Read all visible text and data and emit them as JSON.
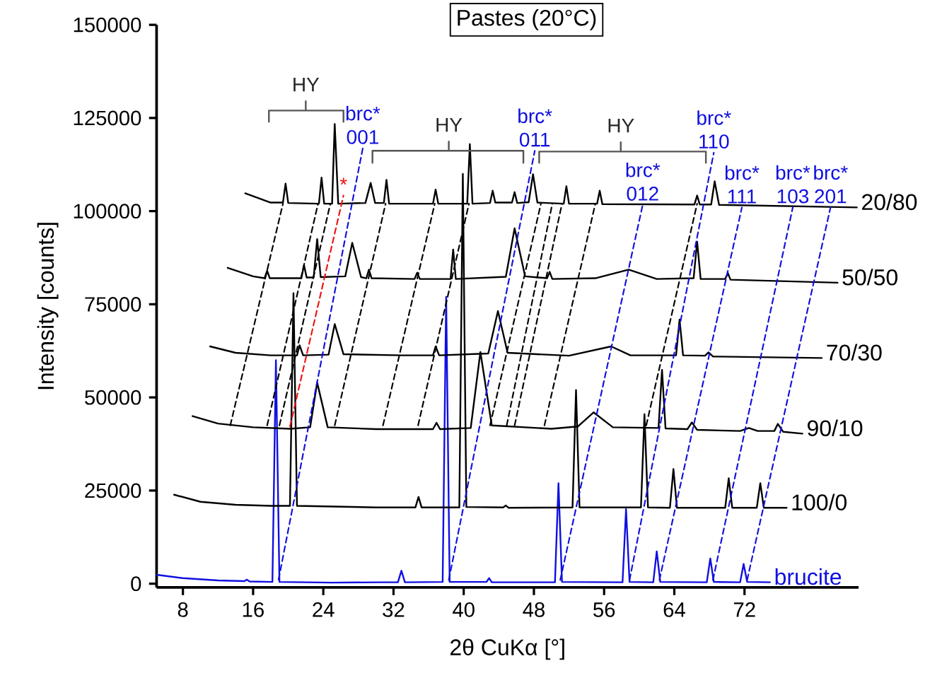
{
  "chart_data": {
    "type": "line",
    "title": "Pastes (20°C)",
    "xlabel": "2θ CuKα [°]",
    "ylabel": "Intensity [counts]",
    "xlim": [
      5,
      85
    ],
    "ylim": [
      -1000,
      150000
    ],
    "xticks": [
      8,
      16,
      24,
      32,
      40,
      48,
      56,
      64,
      72
    ],
    "yticks": [
      0,
      25000,
      50000,
      75000,
      100000,
      125000,
      150000
    ],
    "series": [
      {
        "name": "brucite",
        "color": "#1010e0",
        "x": [
          5,
          8,
          12,
          15,
          15.3,
          15.6,
          18.2,
          18.6,
          19.0,
          25,
          30.5,
          32.5,
          32.9,
          33.3,
          37.6,
          38.0,
          38.4,
          42.6,
          42.9,
          43.2,
          50.4,
          50.8,
          51.2,
          58.1,
          58.5,
          58.9,
          61.6,
          62.0,
          62.4,
          67.7,
          68.1,
          68.5,
          71.5,
          71.9,
          72.3,
          74.9
        ],
        "values": [
          2400,
          1500,
          900,
          700,
          1100,
          600,
          500,
          60000,
          500,
          300,
          400,
          400,
          3500,
          400,
          500,
          77000,
          500,
          500,
          1500,
          400,
          400,
          27000,
          500,
          400,
          20000,
          500,
          400,
          8700,
          500,
          400,
          6800,
          500,
          400,
          5300,
          500,
          400
        ]
      },
      {
        "name": "100/0",
        "color": "#000000",
        "x": [
          7.0,
          10,
          14,
          18,
          20.2,
          20.6,
          21.0,
          30,
          34.5,
          34.85,
          35.2,
          39.5,
          39.9,
          40.3,
          44.5,
          44.8,
          45.1,
          52.4,
          52.8,
          53.2,
          60.2,
          60.6,
          61.0,
          63.5,
          63.9,
          64.3,
          69.8,
          70.2,
          70.6,
          73.4,
          73.8,
          74.2,
          76.8
        ],
        "values": [
          23900,
          22000,
          21200,
          20900,
          20900,
          78000,
          20900,
          20500,
          20500,
          23300,
          20500,
          20500,
          110000,
          20600,
          20500,
          21000,
          20400,
          20500,
          52000,
          20500,
          20500,
          45500,
          20500,
          20400,
          30800,
          20400,
          20400,
          28300,
          20400,
          20400,
          27000,
          20400,
          20400
        ]
      },
      {
        "name": "90/10",
        "color": "#000000",
        "x": [
          9.1,
          12,
          16,
          20.2,
          22.5,
          23.3,
          24.5,
          30,
          36.5,
          36.9,
          37.3,
          40.8,
          41.9,
          43.2,
          50,
          53,
          54.8,
          57,
          62.2,
          62.6,
          63.0,
          65.5,
          66.0,
          66.6,
          71.5,
          72.5,
          73.5,
          75.4,
          75.8,
          76.4,
          78.6
        ],
        "values": [
          45000,
          43000,
          42000,
          41600,
          42000,
          54000,
          42000,
          41500,
          41500,
          43200,
          41500,
          41800,
          62200,
          42500,
          41600,
          42200,
          46000,
          42000,
          41800,
          57400,
          41700,
          41500,
          43300,
          41300,
          41000,
          41800,
          41000,
          41000,
          42900,
          40800,
          40300
        ]
      },
      {
        "name": "70/30",
        "color": "#000000",
        "x": [
          11.1,
          14,
          18,
          21.0,
          21.3,
          21.7,
          24.6,
          25.3,
          26.3,
          33,
          36.5,
          36.8,
          37.2,
          42.8,
          43.9,
          45.0,
          52,
          56.8,
          59,
          64.2,
          64.6,
          65.0,
          67.5,
          67.9,
          68.4,
          80.8
        ],
        "values": [
          63700,
          62000,
          61300,
          61300,
          64000,
          61300,
          61500,
          69700,
          61600,
          61300,
          61300,
          63700,
          61300,
          61800,
          73200,
          62000,
          61200,
          63700,
          61300,
          61300,
          70900,
          61300,
          61200,
          62100,
          61000,
          60600
        ]
      },
      {
        "name": "50/50",
        "color": "#000000",
        "x": [
          13.1,
          16,
          17.3,
          17.6,
          17.9,
          21.5,
          21.8,
          22.1,
          22.9,
          23.3,
          23.7,
          26.5,
          27.3,
          28.3,
          28.9,
          29.2,
          29.5,
          34.4,
          34.7,
          35.0,
          38.5,
          38.8,
          39.1,
          44.8,
          45.8,
          47.0,
          49.5,
          49.8,
          50.1,
          55,
          58.8,
          62,
          66.2,
          66.6,
          67.0,
          69.8,
          70.1,
          70.4,
          82.6
        ],
        "values": [
          84800,
          82500,
          82000,
          84000,
          82000,
          82000,
          85500,
          82200,
          82200,
          92500,
          82300,
          82500,
          91500,
          82300,
          82000,
          84300,
          82000,
          81800,
          83500,
          81800,
          81800,
          89700,
          81800,
          82400,
          95400,
          82500,
          82000,
          83700,
          81800,
          82000,
          84300,
          81800,
          82000,
          91800,
          81800,
          81800,
          83400,
          81600,
          80800
        ]
      },
      {
        "name": "20/80",
        "color": "#000000",
        "x": [
          15.1,
          18,
          19.4,
          19.7,
          20.0,
          23.5,
          23.8,
          24.1,
          25.0,
          25.3,
          25.7,
          28.8,
          29.4,
          29.9,
          30.9,
          31.2,
          31.5,
          36.5,
          36.8,
          37.1,
          40.4,
          40.7,
          41.0,
          43.0,
          43.3,
          43.6,
          45.5,
          45.8,
          46.1,
          47.4,
          47.9,
          48.4,
          51.4,
          51.7,
          52.0,
          55.2,
          55.5,
          55.8,
          66.3,
          66.6,
          66.9,
          68.2,
          68.6,
          69.1,
          84.8
        ],
        "values": [
          104800,
          102300,
          102300,
          107400,
          102200,
          102000,
          109000,
          102000,
          102000,
          123400,
          102000,
          102200,
          107600,
          102200,
          102200,
          108400,
          102000,
          102000,
          105800,
          102000,
          102000,
          118000,
          102000,
          102200,
          105500,
          102300,
          102300,
          105100,
          102200,
          102400,
          109900,
          102300,
          102000,
          106700,
          102000,
          102000,
          105500,
          101900,
          101800,
          104200,
          101800,
          101800,
          108000,
          101700,
          101000
        ]
      },
      {
        "type": "line",
        "line_style": "dashed",
        "color": "#000000",
        "x": [
          13.4,
          19.4
        ],
        "values": [
          42500,
          102000
        ]
      },
      {
        "type": "line",
        "line_style": "dashed",
        "color": "#000000",
        "x": [
          17.6,
          23.4
        ],
        "values": [
          42500,
          102000
        ]
      },
      {
        "type": "line",
        "line_style": "dashed",
        "color": "#000000",
        "x": [
          19.0,
          24.8
        ],
        "values": [
          42500,
          102000
        ]
      },
      {
        "type": "line",
        "line_style": "dashed",
        "color": "#000000",
        "x": [
          25.3,
          31.1
        ],
        "values": [
          42500,
          102000
        ]
      },
      {
        "type": "line",
        "line_style": "dashed",
        "color": "#000000",
        "x": [
          30.8,
          36.7
        ],
        "values": [
          42500,
          102000
        ]
      },
      {
        "type": "line",
        "line_style": "dashed",
        "color": "#000000",
        "x": [
          34.8,
          40.6
        ],
        "values": [
          42500,
          102000
        ]
      },
      {
        "type": "line",
        "line_style": "dashed",
        "color": "#000000",
        "x": [
          43.0,
          48.8
        ],
        "values": [
          42500,
          102000
        ]
      },
      {
        "type": "line",
        "line_style": "dashed",
        "color": "#000000",
        "x": [
          44.9,
          50.1
        ],
        "values": [
          42500,
          102000
        ]
      },
      {
        "type": "line",
        "line_style": "dashed",
        "color": "#000000",
        "x": [
          45.8,
          51.2
        ],
        "values": [
          42500,
          102000
        ]
      },
      {
        "type": "line",
        "line_style": "dashed",
        "color": "#000000",
        "x": [
          49.2,
          55.0
        ],
        "values": [
          42500,
          102000
        ]
      },
      {
        "type": "line",
        "line_style": "dashed",
        "color": "#000000",
        "x": [
          60.8,
          66.6
        ],
        "values": [
          42500,
          102000
        ]
      },
      {
        "type": "line",
        "line_style": "dashed",
        "color": "#1010e0",
        "x": [
          18.9,
          28.5
        ],
        "values": [
          1100,
          116900
        ]
      },
      {
        "type": "line",
        "line_style": "dashed",
        "color": "#1010e0",
        "x": [
          38.3,
          48.1
        ],
        "values": [
          1000,
          116200
        ]
      },
      {
        "type": "line",
        "line_style": "dashed",
        "color": "#1010e0",
        "x": [
          51.0,
          60.4
        ],
        "values": [
          1000,
          101700
        ]
      },
      {
        "type": "line",
        "line_style": "dashed",
        "color": "#1010e0",
        "x": [
          58.9,
          68.5
        ],
        "values": [
          1000,
          115700
        ]
      },
      {
        "type": "line",
        "line_style": "dashed",
        "color": "#1010e0",
        "x": [
          62.3,
          71.7
        ],
        "values": [
          1000,
          101000
        ]
      },
      {
        "type": "line",
        "line_style": "dashed",
        "color": "#1010e0",
        "x": [
          68.4,
          77.5
        ],
        "values": [
          1000,
          101000
        ]
      },
      {
        "type": "line",
        "line_style": "dashed",
        "color": "#1010e0",
        "x": [
          72.3,
          81.8
        ],
        "values": [
          1000,
          101000
        ]
      },
      {
        "type": "line",
        "line_style": "dashed",
        "color": "#ee1111",
        "x": [
          20.2,
          26.3
        ],
        "values": [
          42200,
          104200
        ]
      },
      {
        "type": "line",
        "color": "#555555",
        "x": [
          17.8,
          17.8,
          22.0,
          22.0,
          22.0,
          26.3,
          26.3
        ],
        "values": [
          124000,
          127000,
          127000,
          129500,
          127000,
          127000,
          124000
        ]
      },
      {
        "type": "line",
        "color": "#555555",
        "x": [
          29.6,
          29.6,
          38.3,
          38.3,
          38.3,
          46.8,
          46.8
        ],
        "values": [
          113000,
          116200,
          116200,
          118700,
          116200,
          116200,
          113000
        ]
      },
      {
        "type": "line",
        "color": "#555555",
        "x": [
          48.6,
          48.6,
          57.9,
          57.9,
          57.9,
          67.6,
          67.6
        ],
        "values": [
          113000,
          116000,
          116000,
          118500,
          116000,
          116000,
          113000
        ]
      }
    ],
    "annotations": [
      "HY",
      "HY",
      "HY",
      "brc* 001",
      "brc* 011",
      "brc* 012",
      "brc* 110",
      "brc* 111",
      "brc* 103",
      "brc* 201",
      "*"
    ]
  }
}
